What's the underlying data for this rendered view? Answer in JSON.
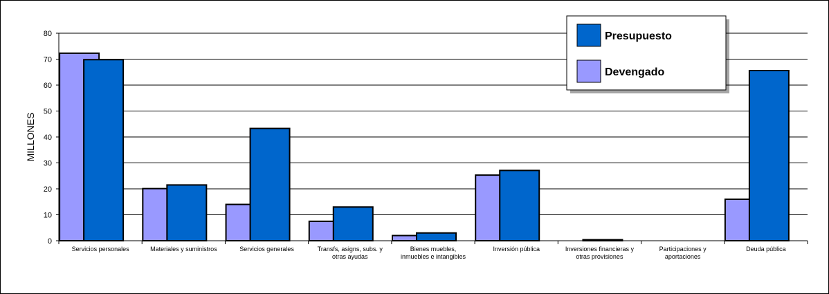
{
  "chart_data": {
    "type": "bar",
    "ylabel": "MILLONES",
    "ylim": [
      0,
      80
    ],
    "yticks": [
      0,
      10,
      20,
      30,
      40,
      50,
      60,
      70,
      80
    ],
    "grid": true,
    "legend_position": "top-right",
    "categories": [
      [
        "Servicios personales"
      ],
      [
        "Materiales y suministros"
      ],
      [
        "Servicios generales"
      ],
      [
        "Transfs, asigns, subs. y",
        "otras ayudas"
      ],
      [
        "Bienes muebles,",
        "inmuebles e intangibles"
      ],
      [
        "Inversión pública"
      ],
      [
        "Inversiones financieras y",
        "otras provisiones"
      ],
      [
        "Participaciones y",
        "aportaciones"
      ],
      [
        "Deuda pública"
      ]
    ],
    "series": [
      {
        "name": "Devengado",
        "color": "#9999ff",
        "values": [
          72.3,
          20.1,
          14.0,
          7.5,
          2.0,
          25.3,
          0,
          0,
          16.0
        ]
      },
      {
        "name": "Presupuesto",
        "color": "#0066cc",
        "values": [
          69.8,
          21.5,
          43.3,
          13.0,
          3.0,
          27.1,
          0.4,
          0,
          65.6
        ]
      }
    ],
    "legend_order": [
      "Presupuesto",
      "Devengado"
    ]
  }
}
